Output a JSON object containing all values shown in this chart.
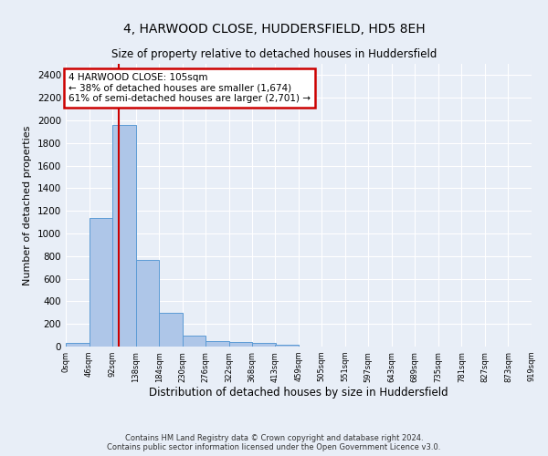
{
  "title": "4, HARWOOD CLOSE, HUDDERSFIELD, HD5 8EH",
  "subtitle": "Size of property relative to detached houses in Huddersfield",
  "xlabel": "Distribution of detached houses by size in Huddersfield",
  "ylabel": "Number of detached properties",
  "footer_line1": "Contains HM Land Registry data © Crown copyright and database right 2024.",
  "footer_line2": "Contains public sector information licensed under the Open Government Licence v3.0.",
  "bar_color": "#aec6e8",
  "bar_edge_color": "#5b9bd5",
  "annotation_box_color": "#cc0000",
  "property_line_color": "#cc0000",
  "property_sqm": 105,
  "annotation_title": "4 HARWOOD CLOSE: 105sqm",
  "annotation_line1": "← 38% of detached houses are smaller (1,674)",
  "annotation_line2": "61% of semi-detached houses are larger (2,701) →",
  "bin_edges": [
    0,
    46,
    92,
    138,
    184,
    230,
    276,
    322,
    368,
    413,
    459,
    505,
    551,
    597,
    643,
    689,
    735,
    781,
    827,
    873,
    919
  ],
  "bin_labels": [
    "0sqm",
    "46sqm",
    "92sqm",
    "138sqm",
    "184sqm",
    "230sqm",
    "276sqm",
    "322sqm",
    "368sqm",
    "413sqm",
    "459sqm",
    "505sqm",
    "551sqm",
    "597sqm",
    "643sqm",
    "689sqm",
    "735sqm",
    "781sqm",
    "827sqm",
    "873sqm",
    "919sqm"
  ],
  "bar_heights": [
    35,
    1135,
    1960,
    770,
    300,
    100,
    48,
    40,
    30,
    20,
    0,
    0,
    0,
    0,
    0,
    0,
    0,
    0,
    0,
    0
  ],
  "ylim": [
    0,
    2500
  ],
  "yticks": [
    0,
    200,
    400,
    600,
    800,
    1000,
    1200,
    1400,
    1600,
    1800,
    2000,
    2200,
    2400
  ],
  "background_color": "#e8eef7",
  "plot_bg_color": "#e8eef7",
  "title_fontsize": 10,
  "subtitle_fontsize": 8.5
}
